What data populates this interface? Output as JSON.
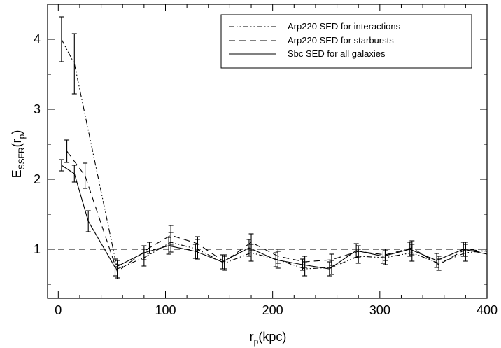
{
  "chart_data": {
    "type": "line",
    "title": "",
    "xlabel": {
      "main": "r",
      "sub": "p",
      "rest": "(kpc)"
    },
    "ylabel": {
      "main": "E",
      "sub": "SSFR",
      "rest1": "(r",
      "sub2": "p",
      "rest2": ")"
    },
    "xlim": [
      -10,
      400
    ],
    "ylim": [
      0.3,
      4.5
    ],
    "xticks": [
      0,
      100,
      200,
      300,
      400
    ],
    "yticks": [
      1,
      2,
      3,
      4
    ],
    "grid": false,
    "legend_position": "top-right",
    "reference_line": {
      "y": 1,
      "style": "dashed"
    },
    "series": [
      {
        "name": "Arp220 SED for interactions",
        "style": "dashdotdot",
        "x": [
          3,
          15,
          55,
          80,
          105,
          130,
          155,
          180,
          205,
          230,
          255,
          280,
          305,
          330,
          355,
          380,
          400
        ],
        "y": [
          4.0,
          3.65,
          0.72,
          0.88,
          1.1,
          1.0,
          0.8,
          0.95,
          0.85,
          0.72,
          0.74,
          0.9,
          0.88,
          0.95,
          0.8,
          0.95,
          0.98
        ],
        "err": [
          0.32,
          0.43,
          0.12,
          0.12,
          0.14,
          0.14,
          0.1,
          0.12,
          0.12,
          0.1,
          0.1,
          0.1,
          0.1,
          0.12,
          0.1,
          0.12,
          0.0
        ]
      },
      {
        "name": "Arp220 SED for starbursts",
        "style": "dashed",
        "x": [
          8,
          25,
          55,
          85,
          105,
          130,
          155,
          180,
          205,
          230,
          255,
          280,
          305,
          330,
          355,
          380,
          400
        ],
        "y": [
          2.4,
          2.05,
          0.68,
          1.02,
          1.2,
          1.08,
          0.82,
          1.1,
          0.9,
          0.82,
          0.85,
          0.97,
          0.92,
          1.02,
          0.78,
          1.0,
          0.97
        ],
        "err": [
          0.16,
          0.18,
          0.1,
          0.08,
          0.14,
          0.1,
          0.1,
          0.12,
          0.1,
          0.08,
          0.08,
          0.08,
          0.08,
          0.1,
          0.08,
          0.1,
          0.0
        ]
      },
      {
        "name": "Sbc SED for all galaxies",
        "style": "solid",
        "x": [
          3,
          15,
          28,
          53,
          80,
          103,
          128,
          153,
          178,
          203,
          228,
          253,
          278,
          303,
          328,
          353,
          378,
          400
        ],
        "y": [
          2.2,
          2.08,
          1.4,
          0.74,
          0.95,
          1.05,
          0.97,
          0.82,
          1.02,
          0.85,
          0.78,
          0.72,
          0.98,
          0.9,
          1.0,
          0.84,
          1.0,
          0.93
        ],
        "err": [
          0.08,
          0.12,
          0.15,
          0.12,
          0.1,
          0.12,
          0.1,
          0.1,
          0.12,
          0.1,
          0.08,
          0.1,
          0.1,
          0.1,
          0.1,
          0.1,
          0.1,
          0.0
        ]
      }
    ]
  }
}
